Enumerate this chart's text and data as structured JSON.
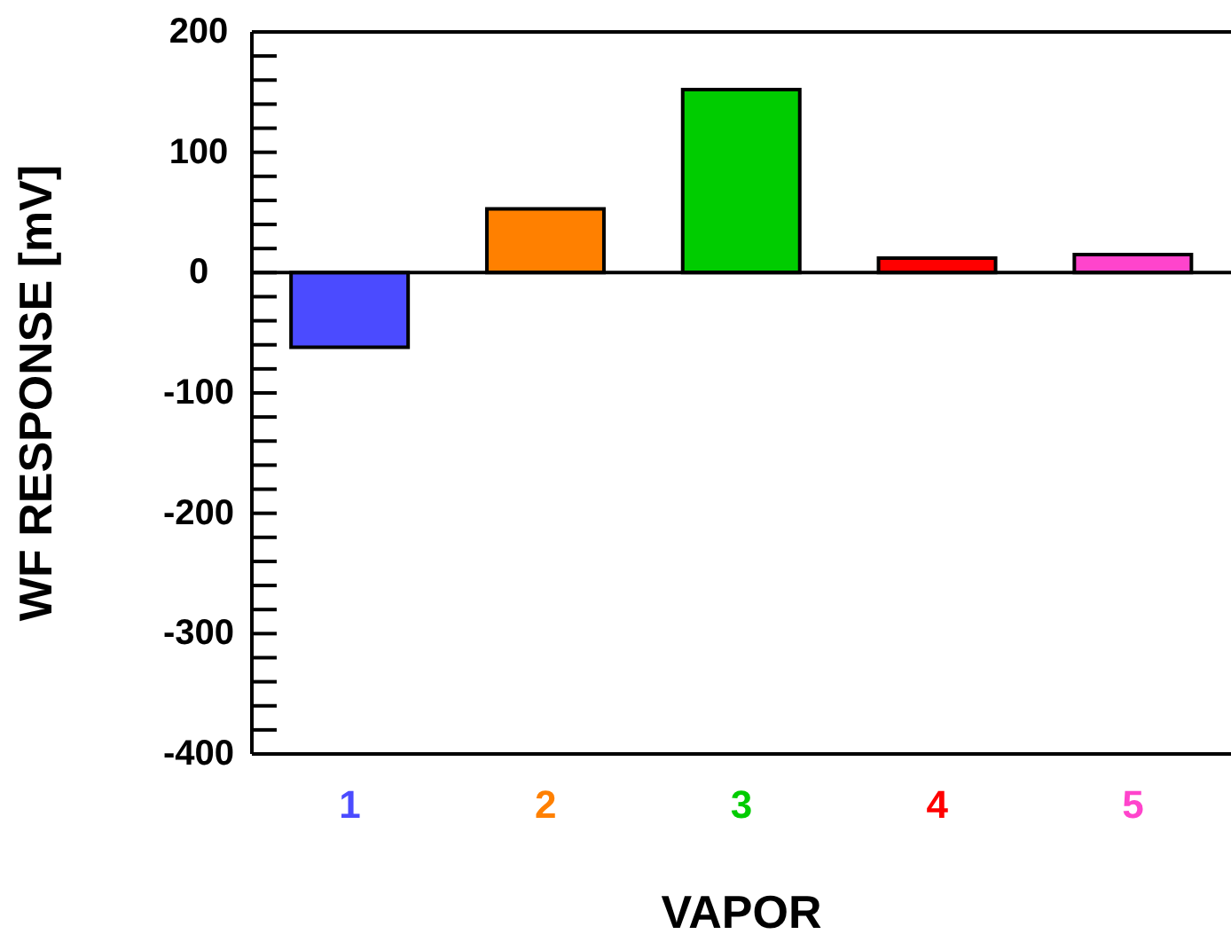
{
  "chart_data": {
    "type": "bar",
    "xlabel": "VAPOR",
    "ylabel": "WF RESPONSE [mV]",
    "categories": [
      "1",
      "2",
      "3",
      "4",
      "5"
    ],
    "values": [
      -62,
      53,
      152,
      12,
      15
    ],
    "colors": [
      "#4b4bff",
      "#ff8000",
      "#00cc00",
      "#ff0000",
      "#ff44cc"
    ],
    "ylim": [
      -400,
      200
    ],
    "yticks": [
      -400,
      {
        "value": -380,
        "label": null
      },
      {
        "value": -360,
        "label": null
      },
      {
        "value": -340,
        "label": null
      },
      {
        "value": -320,
        "label": null
      },
      -300,
      {
        "value": -280,
        "label": null
      },
      {
        "value": -260,
        "label": null
      },
      {
        "value": -240,
        "label": null
      },
      {
        "value": -220,
        "label": null
      },
      -200,
      {
        "value": -180,
        "label": null
      },
      {
        "value": -160,
        "label": null
      },
      {
        "value": -140,
        "label": null
      },
      {
        "value": -120,
        "label": null
      },
      -100,
      {
        "value": -80,
        "label": null
      },
      {
        "value": -60,
        "label": null
      },
      {
        "value": -40,
        "label": null
      },
      {
        "value": -20,
        "label": null
      },
      0,
      {
        "value": 20,
        "label": null
      },
      {
        "value": 40,
        "label": null
      },
      {
        "value": 60,
        "label": null
      },
      {
        "value": 80,
        "label": null
      },
      100,
      {
        "value": 120,
        "label": null
      },
      {
        "value": 140,
        "label": null
      },
      {
        "value": 160,
        "label": null
      },
      {
        "value": 180,
        "label": null
      },
      200
    ],
    "ref_lines": [
      {
        "axis": "y",
        "value": 0,
        "label": null,
        "color": "#000000"
      }
    ],
    "grid": false,
    "legend": false
  }
}
